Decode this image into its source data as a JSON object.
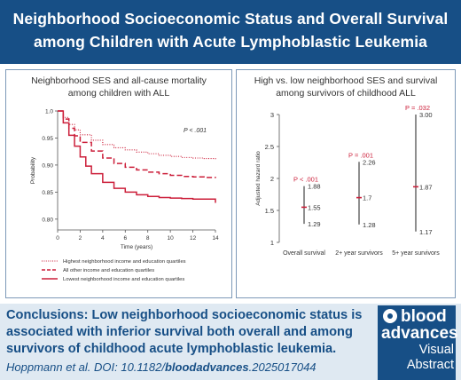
{
  "header": {
    "title_line1": "Neighborhood Socioeconomic Status and Overall Survival",
    "title_line2": "among Children with Acute Lymphoblastic Leukemia"
  },
  "left_panel": {
    "title_line1": "Neighborhood SES and all-cause mortality",
    "title_line2": "among children with ALL"
  },
  "right_panel": {
    "title_line1": "High vs. low neighborhood SES and survival",
    "title_line2": "among survivors of childhood ALL"
  },
  "chart_data": [
    {
      "type": "line",
      "title": "",
      "xlabel": "Time (years)",
      "ylabel": "Probability",
      "xlim": [
        0,
        14
      ],
      "ylim": [
        0.78,
        1.0
      ],
      "xticks": [
        "0",
        "2",
        "4",
        "6",
        "8",
        "10",
        "12",
        "14"
      ],
      "yticks": [
        "0.80",
        "0.85",
        "0.90",
        "0.95",
        "1.0"
      ],
      "annotation": "P < .001",
      "series": [
        {
          "name": "Highest neighborhood income and education quartiles",
          "style": "dotted",
          "color": "#cc1f3a",
          "x": [
            0,
            0.5,
            1,
            1.5,
            2,
            3,
            4,
            5,
            6,
            7,
            8,
            9,
            10,
            11,
            12,
            13,
            14
          ],
          "y": [
            1.0,
            0.988,
            0.975,
            0.965,
            0.956,
            0.946,
            0.938,
            0.932,
            0.928,
            0.924,
            0.921,
            0.918,
            0.916,
            0.914,
            0.913,
            0.912,
            0.911
          ]
        },
        {
          "name": "All other income and education quartiles",
          "style": "dashed",
          "color": "#cc1f3a",
          "x": [
            0,
            0.5,
            1,
            1.5,
            2,
            3,
            4,
            5,
            6,
            7,
            8,
            9,
            10,
            11,
            12,
            13,
            14
          ],
          "y": [
            1.0,
            0.985,
            0.968,
            0.954,
            0.942,
            0.926,
            0.913,
            0.903,
            0.896,
            0.891,
            0.887,
            0.884,
            0.881,
            0.879,
            0.878,
            0.877,
            0.876
          ]
        },
        {
          "name": "Lowest neighborhood income and education quartiles",
          "style": "solid",
          "color": "#cc1f3a",
          "x": [
            0,
            0.5,
            1,
            1.5,
            2,
            2.5,
            3,
            4,
            5,
            6,
            7,
            8,
            9,
            10,
            11,
            12,
            13,
            13.8,
            14
          ],
          "y": [
            1.0,
            0.978,
            0.955,
            0.935,
            0.915,
            0.898,
            0.884,
            0.868,
            0.857,
            0.85,
            0.845,
            0.842,
            0.84,
            0.839,
            0.838,
            0.837,
            0.837,
            0.837,
            0.83
          ]
        }
      ]
    },
    {
      "type": "scatter",
      "title": "",
      "ylabel": "Adjusted hazard ratio",
      "ylim": [
        1,
        3
      ],
      "yticks": [
        "1",
        "1.5",
        "2",
        "2.5",
        "3"
      ],
      "categories": [
        "Overall survival",
        "2+ year survivors",
        "5+ year survivors"
      ],
      "points": [
        {
          "category": "Overall survival",
          "estimate": 1.55,
          "lower": 1.29,
          "upper": 1.88,
          "p_label": "P < .001",
          "est_label": "1.55",
          "lower_label": "1.29",
          "upper_label": "1.88"
        },
        {
          "category": "2+ year survivors",
          "estimate": 1.7,
          "lower": 1.28,
          "upper": 2.26,
          "p_label": "P = .001",
          "est_label": "1.7",
          "lower_label": "1.28",
          "upper_label": "2.26"
        },
        {
          "category": "5+ year survivors",
          "estimate": 1.87,
          "lower": 1.17,
          "upper": 3.0,
          "p_label": "P = .032",
          "est_label": "1.87",
          "lower_label": "1.17",
          "upper_label": "3.00"
        }
      ]
    }
  ],
  "conclusions": {
    "label": "Conclusions:",
    "text": "Low neighborhood socioeconomic status is associated with inferior survival both overall and among survivors of childhood acute lymphoblastic leukemia."
  },
  "citation": {
    "prefix": "Hoppmann et al. DOI: 10.1182/",
    "bold": "bloodadvances",
    "suffix": ".2025017044"
  },
  "logo": {
    "line1": "blood",
    "line2": "advances",
    "line3": "Visual",
    "line4": "Abstract"
  },
  "colors": {
    "brand_blue": "#174f86",
    "accent_red": "#cc1f3a",
    "panel_border": "#7d99b8",
    "footer_bg": "#dfe9f2"
  }
}
